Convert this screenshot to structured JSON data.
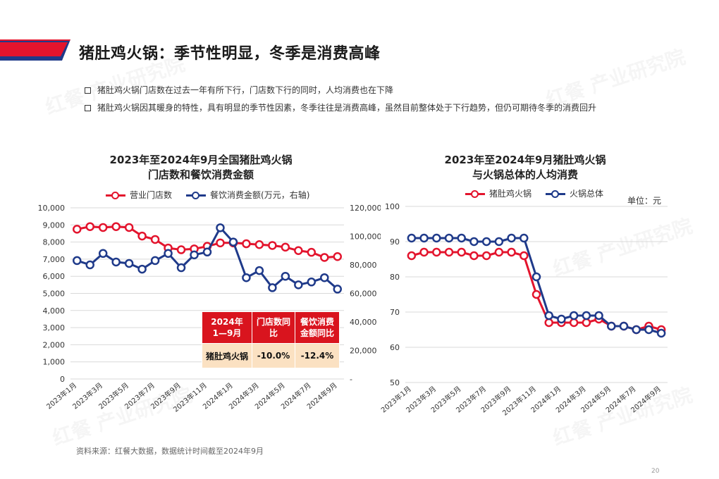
{
  "page": {
    "title": "猪肚鸡火锅：季节性明显，冬季是消费高峰",
    "bullets": [
      "猪肚鸡火锅门店数在过去一年有所下行，门店数下行的同时，人均消费也在下降",
      "猪肚鸡火锅因其暖身的特性，具有明显的季节性因素，冬季往往是消费高峰，虽然目前整体处于下行趋势，但仍可期待冬季的消费回升"
    ],
    "source": "资料来源：红餐大数据，数据统计时间截至2024年9月",
    "page_number": "20",
    "watermark": "红餐 产业研究院",
    "colors": {
      "accent_red": "#e3142d",
      "accent_blue": "#1f3a8a",
      "table_header": "#d9141e",
      "table_body": "#fbe1c2"
    }
  },
  "stats_table": {
    "headers": [
      "2024年\n1—9月",
      "门店数同\n比",
      "餐饮消费\n金额同比"
    ],
    "row": [
      "猪肚鸡火锅",
      "-10.0%",
      "-12.4%"
    ]
  },
  "chart_data": [
    {
      "type": "line",
      "title_line1": "2023年至2024年9月全国猪肚鸡火锅",
      "title_line2": "门店数和餐饮消费金额",
      "x": [
        "2023年1月",
        "2023年2月",
        "2023年3月",
        "2023年4月",
        "2023年5月",
        "2023年6月",
        "2023年7月",
        "2023年8月",
        "2023年9月",
        "2023年10月",
        "2023年11月",
        "2023年12月",
        "2024年1月",
        "2024年2月",
        "2024年3月",
        "2024年4月",
        "2024年5月",
        "2024年6月",
        "2024年7月",
        "2024年8月",
        "2024年9月"
      ],
      "x_tick_labels": [
        "2023年1月",
        "",
        "2023年3月",
        "",
        "2023年5月",
        "",
        "2023年7月",
        "",
        "2023年9月",
        "",
        "2023年11月",
        "",
        "2024年1月",
        "",
        "2024年3月",
        "",
        "2024年5月",
        "",
        "2024年7月",
        "",
        "2024年9月"
      ],
      "series": [
        {
          "name": "营业门店数",
          "axis": "left",
          "color": "#e3142d",
          "values": [
            8750,
            8900,
            8850,
            8900,
            8850,
            8350,
            8150,
            7650,
            7550,
            7600,
            7750,
            7950,
            7950,
            7900,
            7850,
            7800,
            7700,
            7500,
            7400,
            7100,
            7150
          ]
        },
        {
          "name": "餐饮消费金额(万元，右轴)",
          "axis": "right",
          "color": "#1f3a8a",
          "values": [
            83000,
            80000,
            88000,
            82000,
            81000,
            77000,
            83000,
            88000,
            78000,
            87000,
            89000,
            106000,
            96000,
            71000,
            76000,
            64000,
            72000,
            66000,
            68000,
            71000,
            63000
          ]
        }
      ],
      "y_left": {
        "min": 0,
        "max": 10000,
        "ticks": [
          "0",
          "1,000",
          "2,000",
          "3,000",
          "4,000",
          "5,000",
          "6,000",
          "7,000",
          "8,000",
          "9,000",
          "10,000"
        ]
      },
      "y_right": {
        "min": 0,
        "max": 120000,
        "ticks": [
          "-",
          "20,000",
          "40,000",
          "60,000",
          "80,000",
          "100,000",
          "120,000"
        ]
      },
      "grid": true,
      "legend": "top"
    },
    {
      "type": "line",
      "title_line1": "2023年至2024年9月猪肚鸡火锅",
      "title_line2": "与火锅总体的人均消费",
      "unit_label": "单位：元",
      "x": [
        "2023年1月",
        "2023年2月",
        "2023年3月",
        "2023年4月",
        "2023年5月",
        "2023年6月",
        "2023年7月",
        "2023年8月",
        "2023年9月",
        "2023年10月",
        "2023年11月",
        "2023年12月",
        "2024年1月",
        "2024年2月",
        "2024年3月",
        "2024年4月",
        "2024年5月",
        "2024年6月",
        "2024年7月",
        "2024年8月",
        "2024年9月"
      ],
      "x_tick_labels": [
        "2023年1月",
        "",
        "2023年3月",
        "",
        "2023年5月",
        "",
        "2023年7月",
        "",
        "2023年9月",
        "",
        "2023年11月",
        "",
        "2024年1月",
        "",
        "2024年3月",
        "",
        "2024年5月",
        "",
        "2024年7月",
        "",
        "2024年9月"
      ],
      "series": [
        {
          "name": "猪肚鸡火锅",
          "color": "#e3142d",
          "values": [
            86,
            87,
            87,
            87,
            87,
            86,
            86,
            87,
            87,
            86,
            75,
            67,
            67,
            67,
            67,
            68,
            66,
            66,
            65,
            66,
            65
          ]
        },
        {
          "name": "火锅总体",
          "color": "#1f3a8a",
          "values": [
            91,
            91,
            91,
            91,
            91,
            90,
            90,
            90,
            91,
            91,
            80,
            69,
            68,
            69,
            69,
            69,
            66,
            66,
            65,
            65,
            64
          ]
        }
      ],
      "y": {
        "min": 50,
        "max": 100,
        "ticks": [
          "50",
          "60",
          "70",
          "80",
          "90",
          "100"
        ]
      },
      "grid": true,
      "legend": "top"
    }
  ]
}
